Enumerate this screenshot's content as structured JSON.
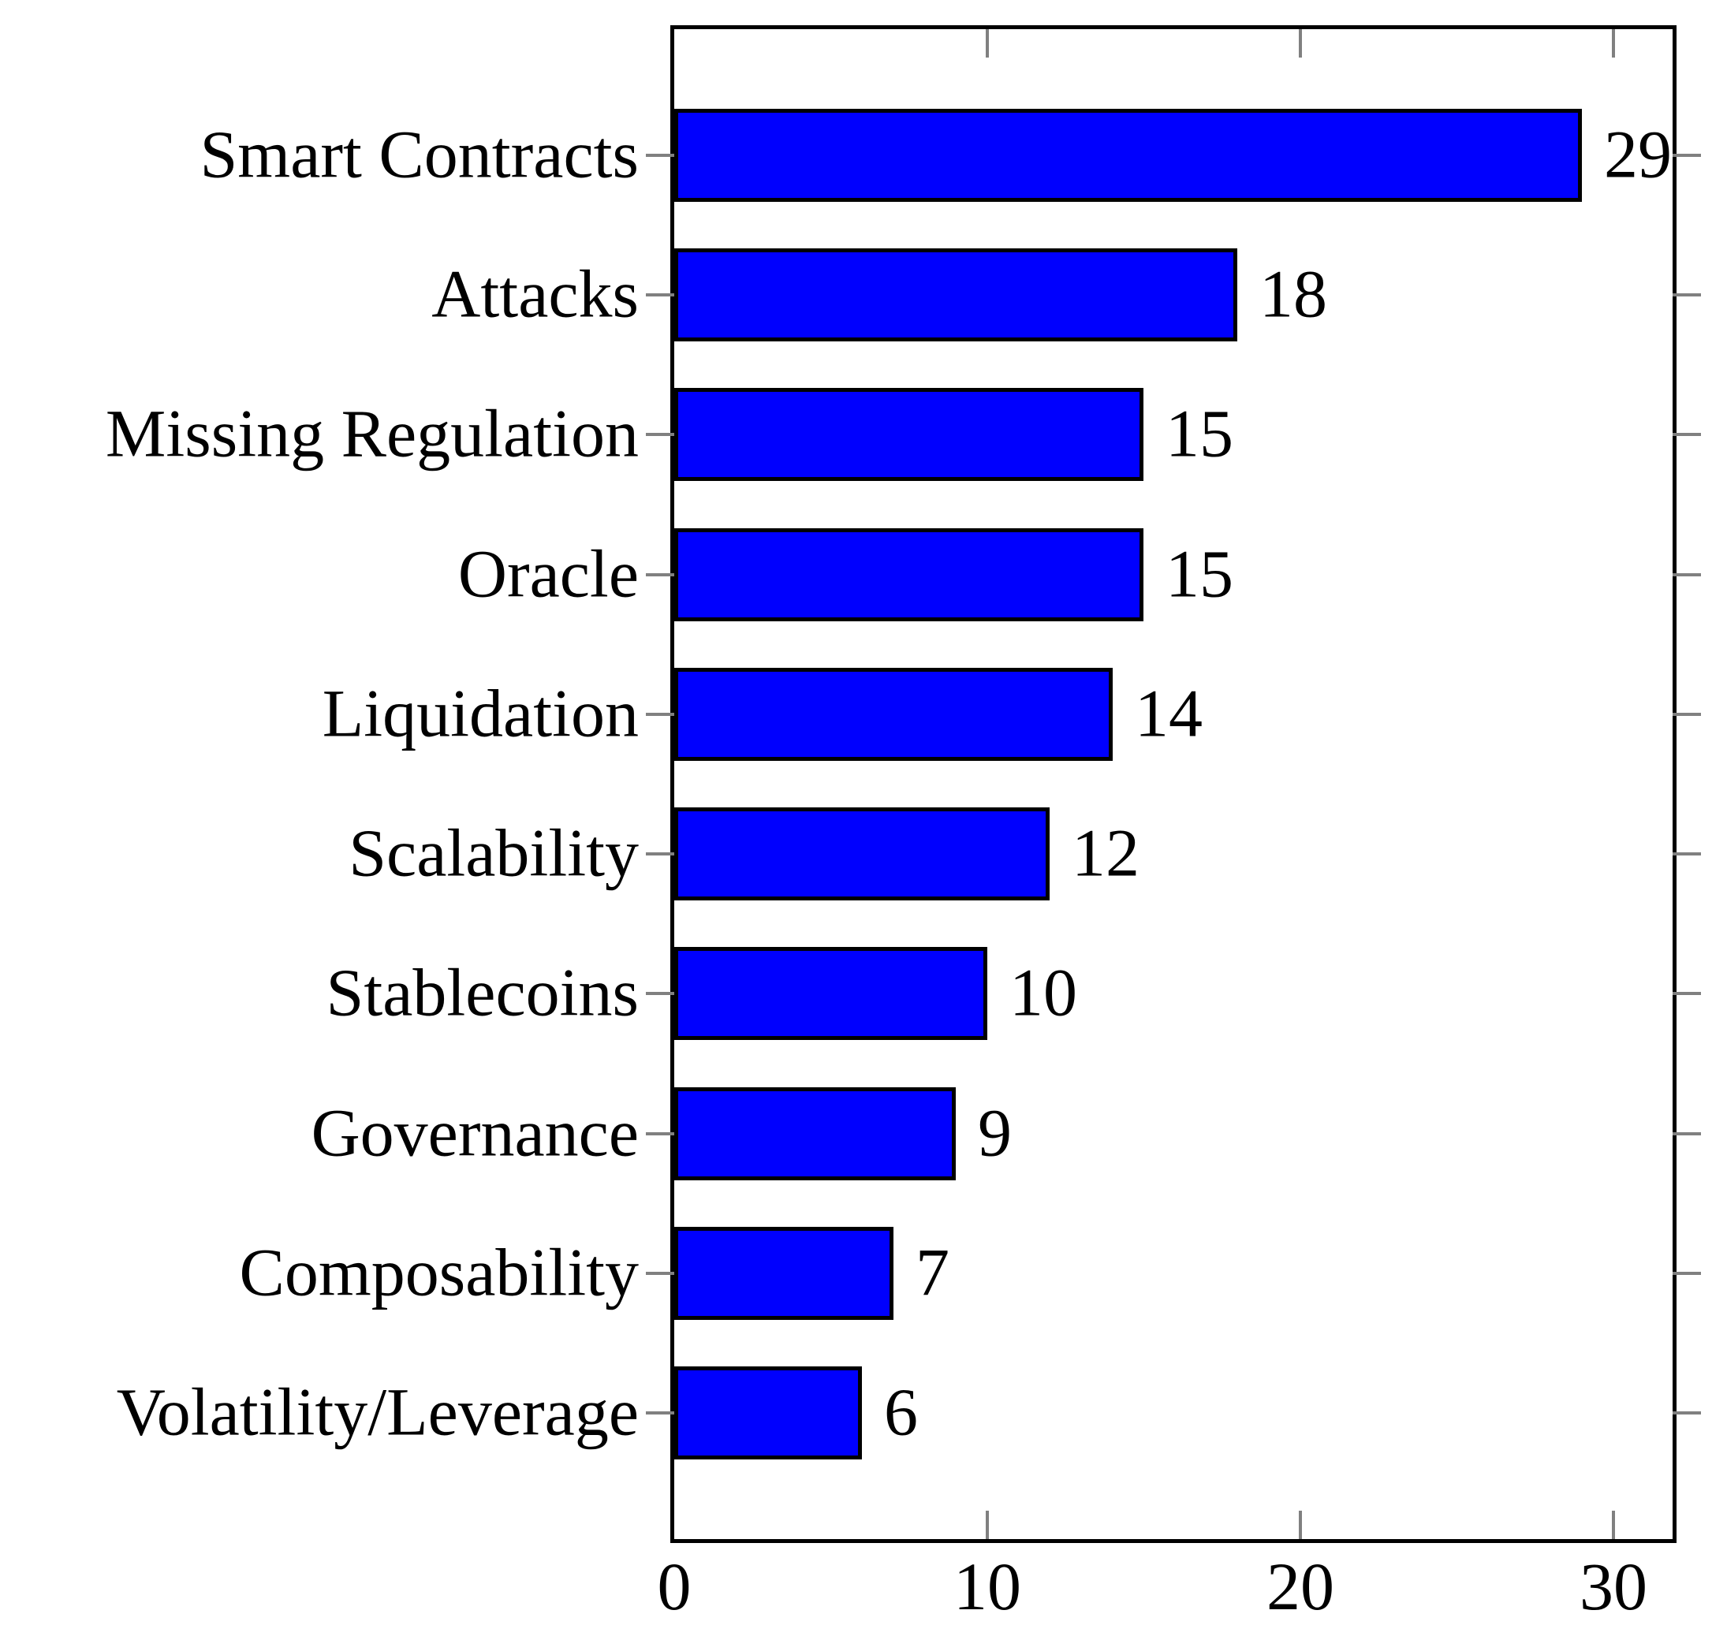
{
  "chart_data": {
    "type": "bar",
    "orientation": "horizontal",
    "title": "",
    "xlabel": "",
    "ylabel": "",
    "categories": [
      "Smart Contracts",
      "Attacks",
      "Missing Regulation",
      "Oracle",
      "Liquidation",
      "Scalability",
      "Stablecoins",
      "Governance",
      "Composability",
      "Volatility/Leverage"
    ],
    "values": [
      29,
      18,
      15,
      15,
      14,
      12,
      10,
      9,
      7,
      6
    ],
    "xticks": [
      0,
      10,
      20,
      30
    ],
    "xlim": [
      0,
      31.9
    ],
    "grid": false,
    "legend_position": "none",
    "bar_color": "#0000fe",
    "bar_border_color": "#000000",
    "axis_frame_color": "#000000",
    "tick_color": "#808080",
    "text_color": "#000000",
    "background_color": "#ffffff"
  }
}
